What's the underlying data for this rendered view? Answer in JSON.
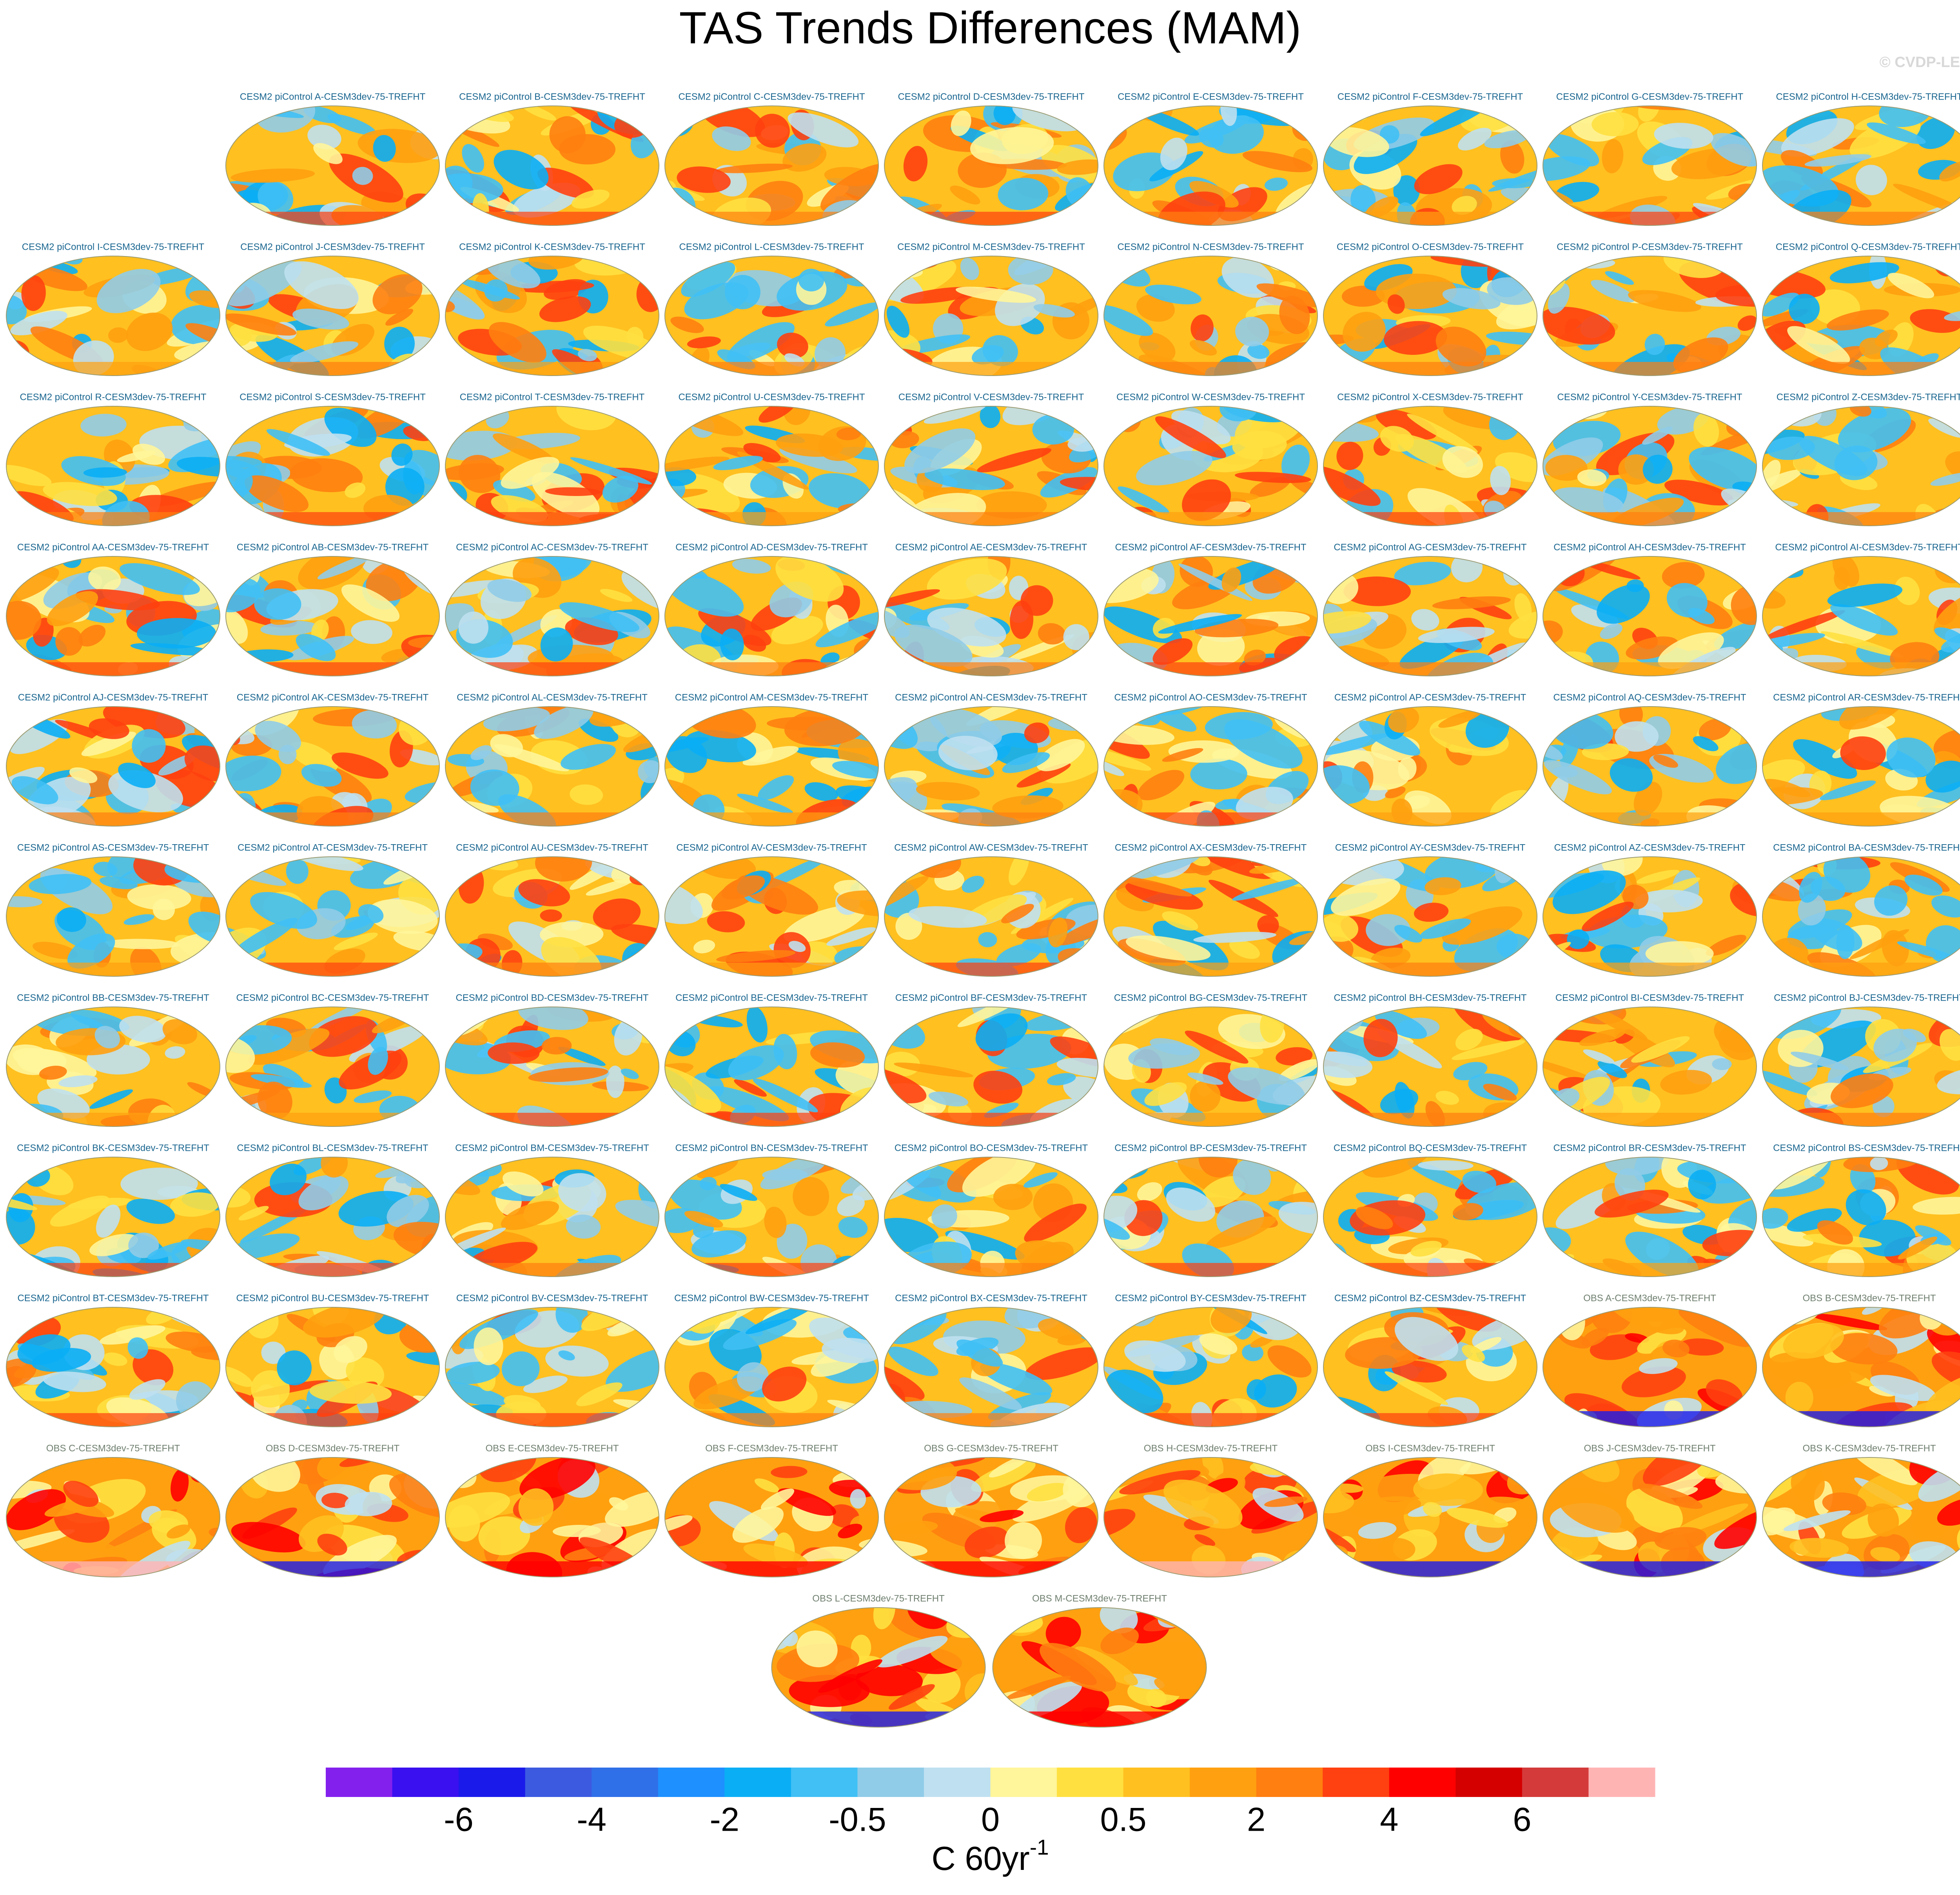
{
  "title": "TAS Trends Differences (MAM)",
  "watermark": "© CVDP-LE",
  "model_panels": [
    "CESM2 piControl A-CESM3dev-75-TREFHT",
    "CESM2 piControl B-CESM3dev-75-TREFHT",
    "CESM2 piControl C-CESM3dev-75-TREFHT",
    "CESM2 piControl D-CESM3dev-75-TREFHT",
    "CESM2 piControl E-CESM3dev-75-TREFHT",
    "CESM2 piControl F-CESM3dev-75-TREFHT",
    "CESM2 piControl G-CESM3dev-75-TREFHT",
    "CESM2 piControl H-CESM3dev-75-TREFHT",
    "CESM2 piControl I-CESM3dev-75-TREFHT",
    "CESM2 piControl J-CESM3dev-75-TREFHT",
    "CESM2 piControl K-CESM3dev-75-TREFHT",
    "CESM2 piControl L-CESM3dev-75-TREFHT",
    "CESM2 piControl M-CESM3dev-75-TREFHT",
    "CESM2 piControl N-CESM3dev-75-TREFHT",
    "CESM2 piControl O-CESM3dev-75-TREFHT",
    "CESM2 piControl P-CESM3dev-75-TREFHT",
    "CESM2 piControl Q-CESM3dev-75-TREFHT",
    "CESM2 piControl R-CESM3dev-75-TREFHT",
    "CESM2 piControl S-CESM3dev-75-TREFHT",
    "CESM2 piControl T-CESM3dev-75-TREFHT",
    "CESM2 piControl U-CESM3dev-75-TREFHT",
    "CESM2 piControl V-CESM3dev-75-TREFHT",
    "CESM2 piControl W-CESM3dev-75-TREFHT",
    "CESM2 piControl X-CESM3dev-75-TREFHT",
    "CESM2 piControl Y-CESM3dev-75-TREFHT",
    "CESM2 piControl Z-CESM3dev-75-TREFHT",
    "CESM2 piControl AA-CESM3dev-75-TREFHT",
    "CESM2 piControl AB-CESM3dev-75-TREFHT",
    "CESM2 piControl AC-CESM3dev-75-TREFHT",
    "CESM2 piControl AD-CESM3dev-75-TREFHT",
    "CESM2 piControl AE-CESM3dev-75-TREFHT",
    "CESM2 piControl AF-CESM3dev-75-TREFHT",
    "CESM2 piControl AG-CESM3dev-75-TREFHT",
    "CESM2 piControl AH-CESM3dev-75-TREFHT",
    "CESM2 piControl AI-CESM3dev-75-TREFHT",
    "CESM2 piControl AJ-CESM3dev-75-TREFHT",
    "CESM2 piControl AK-CESM3dev-75-TREFHT",
    "CESM2 piControl AL-CESM3dev-75-TREFHT",
    "CESM2 piControl AM-CESM3dev-75-TREFHT",
    "CESM2 piControl AN-CESM3dev-75-TREFHT",
    "CESM2 piControl AO-CESM3dev-75-TREFHT",
    "CESM2 piControl AP-CESM3dev-75-TREFHT",
    "CESM2 piControl AQ-CESM3dev-75-TREFHT",
    "CESM2 piControl AR-CESM3dev-75-TREFHT",
    "CESM2 piControl AS-CESM3dev-75-TREFHT",
    "CESM2 piControl AT-CESM3dev-75-TREFHT",
    "CESM2 piControl AU-CESM3dev-75-TREFHT",
    "CESM2 piControl AV-CESM3dev-75-TREFHT",
    "CESM2 piControl AW-CESM3dev-75-TREFHT",
    "CESM2 piControl AX-CESM3dev-75-TREFHT",
    "CESM2 piControl AY-CESM3dev-75-TREFHT",
    "CESM2 piControl AZ-CESM3dev-75-TREFHT",
    "CESM2 piControl BA-CESM3dev-75-TREFHT",
    "CESM2 piControl BB-CESM3dev-75-TREFHT",
    "CESM2 piControl BC-CESM3dev-75-TREFHT",
    "CESM2 piControl BD-CESM3dev-75-TREFHT",
    "CESM2 piControl BE-CESM3dev-75-TREFHT",
    "CESM2 piControl BF-CESM3dev-75-TREFHT",
    "CESM2 piControl BG-CESM3dev-75-TREFHT",
    "CESM2 piControl BH-CESM3dev-75-TREFHT",
    "CESM2 piControl BI-CESM3dev-75-TREFHT",
    "CESM2 piControl BJ-CESM3dev-75-TREFHT",
    "CESM2 piControl BK-CESM3dev-75-TREFHT",
    "CESM2 piControl BL-CESM3dev-75-TREFHT",
    "CESM2 piControl BM-CESM3dev-75-TREFHT",
    "CESM2 piControl BN-CESM3dev-75-TREFHT",
    "CESM2 piControl BO-CESM3dev-75-TREFHT",
    "CESM2 piControl BP-CESM3dev-75-TREFHT",
    "CESM2 piControl BQ-CESM3dev-75-TREFHT",
    "CESM2 piControl BR-CESM3dev-75-TREFHT",
    "CESM2 piControl BS-CESM3dev-75-TREFHT",
    "CESM2 piControl BT-CESM3dev-75-TREFHT",
    "CESM2 piControl BU-CESM3dev-75-TREFHT",
    "CESM2 piControl BV-CESM3dev-75-TREFHT",
    "CESM2 piControl BW-CESM3dev-75-TREFHT",
    "CESM2 piControl BX-CESM3dev-75-TREFHT",
    "CESM2 piControl BY-CESM3dev-75-TREFHT",
    "CESM2 piControl BZ-CESM3dev-75-TREFHT"
  ],
  "obs_panels": [
    "OBS A-CESM3dev-75-TREFHT",
    "OBS B-CESM3dev-75-TREFHT",
    "OBS C-CESM3dev-75-TREFHT",
    "OBS D-CESM3dev-75-TREFHT",
    "OBS E-CESM3dev-75-TREFHT",
    "OBS F-CESM3dev-75-TREFHT",
    "OBS G-CESM3dev-75-TREFHT",
    "OBS H-CESM3dev-75-TREFHT",
    "OBS I-CESM3dev-75-TREFHT",
    "OBS J-CESM3dev-75-TREFHT",
    "OBS K-CESM3dev-75-TREFHT",
    "OBS L-CESM3dev-75-TREFHT",
    "OBS M-CESM3dev-75-TREFHT"
  ],
  "colorbar": {
    "colors": [
      "#8420ee",
      "#3a10f0",
      "#1a1aeb",
      "#3c5ae0",
      "#2f6fe8",
      "#1e90ff",
      "#0aaef5",
      "#40c0f5",
      "#90cce8",
      "#bfe0f0",
      "#fff59a",
      "#ffe040",
      "#ffc020",
      "#ffa010",
      "#ff7f10",
      "#ff4010",
      "#ff0000",
      "#d40000",
      "#d43a3a",
      "#ffb4b4"
    ],
    "tick_labels": [
      -6,
      -4,
      -2,
      -0.5,
      0,
      0.5,
      2,
      4,
      6
    ],
    "units": "C 60yr",
    "units_superscript": "-1"
  }
}
